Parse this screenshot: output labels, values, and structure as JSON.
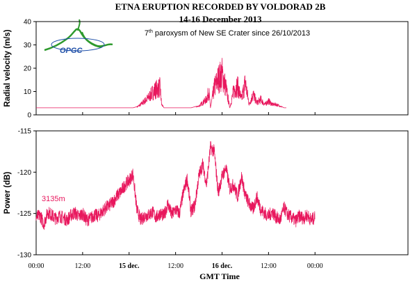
{
  "chart_data": {
    "type": "line",
    "title": "ETNA ERUPTION RECORDED BY VOLDORAD 2B",
    "subtitle_dates": "14-16 December 2013",
    "subtitle_pre": "7",
    "subtitle_sup": "th",
    "subtitle_post": " paroxysm of New SE Crater since 26/10/2013",
    "xlabel": "GMT Time",
    "xlim_hours": [
      0,
      48
    ],
    "x_ticks": [
      {
        "hour": 0,
        "label": "00:00",
        "bold": false
      },
      {
        "hour": 6,
        "label": "12:00",
        "bold": false
      },
      {
        "hour": 12,
        "label": "15 dec.",
        "bold": true
      },
      {
        "hour": 18,
        "label": "12:00",
        "bold": false
      },
      {
        "hour": 24,
        "label": "16 dec.",
        "bold": true
      },
      {
        "hour": 30,
        "label": "12:00",
        "bold": false
      },
      {
        "hour": 36,
        "label": "00:00",
        "bold": false
      }
    ],
    "line_color": "#e8175d",
    "logo": {
      "text": "OPGC",
      "color": "#2e9a2e"
    },
    "panels": [
      {
        "id": "velocity",
        "ylabel": "Radial velocity (m/s)",
        "ylim": [
          0,
          40
        ],
        "y_ticks": [
          0,
          10,
          20,
          30,
          40
        ],
        "baseline": 3,
        "x": [
          0,
          12.5,
          13.0,
          13.5,
          14.0,
          14.5,
          15.0,
          15.5,
          16.0,
          16.2,
          16.5,
          17.0,
          18.0,
          19.0,
          20.0,
          21.0,
          22.0,
          22.3,
          22.5,
          23.0,
          23.5,
          24.0,
          24.5,
          25.0,
          25.5,
          26.0,
          26.5,
          27.0,
          27.5,
          28.0,
          28.5,
          29.0,
          29.5,
          30.0,
          30.5,
          31.0,
          31.5,
          32.0,
          32.3
        ],
        "y": [
          3,
          3,
          3.5,
          5,
          7,
          9,
          12,
          14,
          15,
          5,
          3,
          3,
          3,
          3,
          3,
          4,
          8,
          13,
          3,
          15,
          20,
          23,
          15,
          3,
          13,
          16,
          8,
          18,
          5,
          11,
          6,
          8,
          5,
          7,
          5,
          5,
          4,
          3,
          3
        ]
      },
      {
        "id": "power",
        "ylabel": "Power (dB)",
        "ylim": [
          -130,
          -115
        ],
        "y_ticks": [
          -130,
          -125,
          -120,
          -115
        ],
        "annotation": "3135m",
        "x": [
          0,
          0.5,
          1,
          1.5,
          2,
          2.5,
          3,
          3.5,
          4,
          4.5,
          5,
          5.5,
          6,
          6.5,
          7,
          7.5,
          8,
          8.5,
          9,
          9.5,
          10,
          10.5,
          11,
          11.5,
          12,
          12.5,
          13,
          13.5,
          14,
          14.5,
          15,
          15.5,
          16,
          16.5,
          17,
          17.5,
          18,
          18.5,
          19,
          19.5,
          20,
          20.5,
          21,
          21.5,
          22,
          22.5,
          23,
          23.5,
          24,
          24.5,
          25,
          25.5,
          26,
          26.5,
          27,
          27.5,
          28,
          28.5,
          29,
          29.5,
          30,
          30.5,
          31,
          31.5,
          32,
          32.5,
          33,
          33.5,
          34,
          34.5,
          35,
          35.5,
          36
        ],
        "y": [
          -125.5,
          -125.2,
          -126.3,
          -124.8,
          -125.2,
          -125.6,
          -125.3,
          -125.5,
          -125.8,
          -125.2,
          -124.9,
          -125.4,
          -125.0,
          -125.8,
          -125.6,
          -125.2,
          -125.3,
          -124.8,
          -124.3,
          -124.0,
          -123.5,
          -122.8,
          -122.3,
          -121.5,
          -121.0,
          -120.2,
          -124.5,
          -125.8,
          -125.3,
          -125.2,
          -124.8,
          -125.5,
          -125.0,
          -125.3,
          -123.8,
          -125.2,
          -124.5,
          -125.0,
          -122.5,
          -120.8,
          -124.8,
          -124.0,
          -120.5,
          -119.0,
          -121.5,
          -117.0,
          -117.5,
          -122.5,
          -120.5,
          -119.5,
          -122.0,
          -121.5,
          -123.0,
          -120.5,
          -122.8,
          -123.8,
          -124.5,
          -123.0,
          -124.5,
          -125.0,
          -125.3,
          -124.8,
          -125.5,
          -125.8,
          -124.3,
          -125.2,
          -125.5,
          -125.9,
          -125.3,
          -125.6,
          -125.2,
          -125.8,
          -125.5
        ]
      }
    ]
  }
}
